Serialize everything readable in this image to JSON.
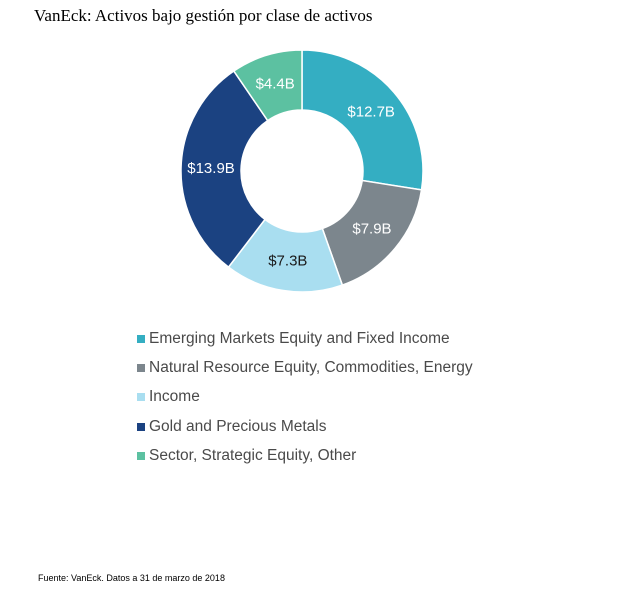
{
  "title": "VanEck: Activos bajo gestión por clase de activos",
  "footnote": "Fuente: VanEck. Datos a 31 de marzo de 2018",
  "chart_data": {
    "type": "pie",
    "donut": true,
    "legend_position": "bottom",
    "slices": [
      {
        "name": "Emerging Markets Equity and Fixed Income",
        "value": 12.7,
        "label": "$12.7B",
        "color": "#34aec2",
        "label_color": "#ffffff"
      },
      {
        "name": "Natural Resource Equity, Commodities, Energy",
        "value": 7.9,
        "label": "$7.9B",
        "color": "#7c868d",
        "label_color": "#ffffff"
      },
      {
        "name": "Income",
        "value": 7.3,
        "label": "$7.3B",
        "color": "#a9def0",
        "label_color": "#1a1a1a"
      },
      {
        "name": "Gold and Precious Metals",
        "value": 13.9,
        "label": "$13.9B",
        "color": "#1b4281",
        "label_color": "#ffffff"
      },
      {
        "name": "Sector, Strategic Equity, Other",
        "value": 4.4,
        "label": "$4.4B",
        "color": "#5cc1a1",
        "label_color": "#ffffff"
      }
    ]
  }
}
